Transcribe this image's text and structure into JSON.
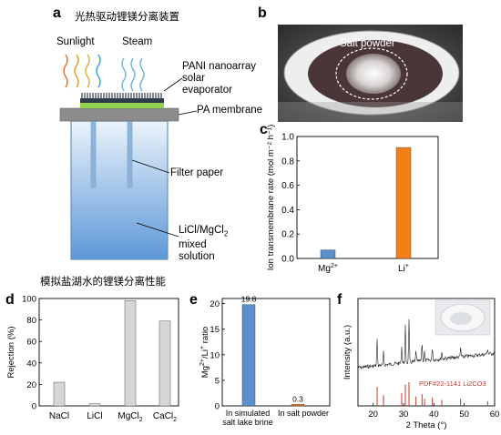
{
  "panel_a": {
    "label": "a",
    "title": "光热驱动锂镁分离装置",
    "sunlight": "Sunlight",
    "steam": "Steam",
    "evaporator": [
      "PANI nanoarray",
      "solar",
      "evaporator"
    ],
    "membrane": "PA membrane",
    "filter": "Filter paper",
    "solution": [
      "LiCl/MgCl",
      "2",
      "mixed",
      "solution"
    ]
  },
  "panel_b": {
    "label": "b",
    "salt": "Salt powder"
  },
  "section_title": "模拟盐湖水的锂镁分离性能",
  "colors": {
    "blue": "#5b8fc9",
    "orange": "#f57f17",
    "gray": "#d6d6d6",
    "red": "#c0392b"
  },
  "chart_data": [
    {
      "panel": "c",
      "type": "bar",
      "ylabel": "Ion transmembrane rate (mol m⁻² h⁻¹)",
      "ylim": [
        0,
        1.0
      ],
      "yticks": [
        "0.0",
        "0.2",
        "0.4",
        "0.6",
        "0.8",
        "1.0"
      ],
      "categories": [
        "Mg2+",
        "Li+"
      ],
      "values": [
        0.07,
        0.91
      ]
    },
    {
      "panel": "d",
      "type": "bar",
      "ylabel": "Rejection (%)",
      "ylim": [
        0,
        100
      ],
      "yticks": [
        "0",
        "20",
        "40",
        "60",
        "80",
        "100"
      ],
      "categories": [
        "NaCl",
        "LiCl",
        "MgCl2",
        "CaCl2"
      ],
      "values": [
        22,
        2,
        98,
        79
      ]
    },
    {
      "panel": "e",
      "type": "bar",
      "ylabel": "Mg2+/Li+ ratio",
      "ylim": [
        0,
        21
      ],
      "yticks": [
        "0",
        "5",
        "10",
        "15",
        "20"
      ],
      "categories": [
        "In simulated salt lake brine",
        "In salt powder"
      ],
      "values": [
        19.8,
        0.3
      ],
      "data_labels": [
        "19.8",
        "0.3"
      ]
    },
    {
      "panel": "f",
      "type": "line",
      "xlabel": "2 Theta (°)",
      "ylabel": "Intensity (a.u.)",
      "xlim": [
        15,
        60
      ],
      "xticks": [
        "20",
        "30",
        "40",
        "50",
        "60"
      ],
      "legend": "PDF#22-1141 Li2CO3",
      "reference_peaks": [
        21.3,
        23.4,
        29.4,
        30.6,
        31.8,
        34.1,
        36.1,
        36.9,
        39.5,
        42.6,
        48.8,
        57.7
      ]
    }
  ]
}
